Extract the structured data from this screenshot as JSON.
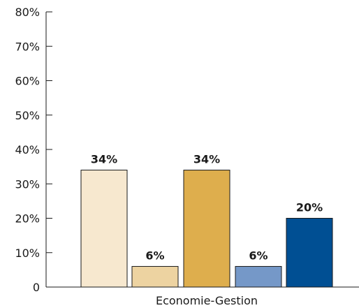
{
  "chart_data": {
    "type": "bar",
    "title": "",
    "xlabel": "",
    "ylabel": "",
    "categories": [
      "Economie-Gestion"
    ],
    "ylim": [
      0,
      80
    ],
    "y_ticks": [
      0,
      10,
      20,
      30,
      40,
      50,
      60,
      70,
      80
    ],
    "y_tick_labels": [
      "0",
      "10%",
      "20%",
      "30%",
      "40%",
      "50%",
      "60%",
      "70%",
      "80%"
    ],
    "grid": false,
    "legend": "none",
    "series": [
      {
        "values": [
          34
        ],
        "label": "34%",
        "color": "#f7e8cf"
      },
      {
        "values": [
          6
        ],
        "label": "6%",
        "color": "#edd3a1"
      },
      {
        "values": [
          34
        ],
        "label": "34%",
        "color": "#deae4d"
      },
      {
        "values": [
          6
        ],
        "label": "6%",
        "color": "#7598c8"
      },
      {
        "values": [
          20
        ],
        "label": "20%",
        "color": "#004f93"
      }
    ]
  }
}
